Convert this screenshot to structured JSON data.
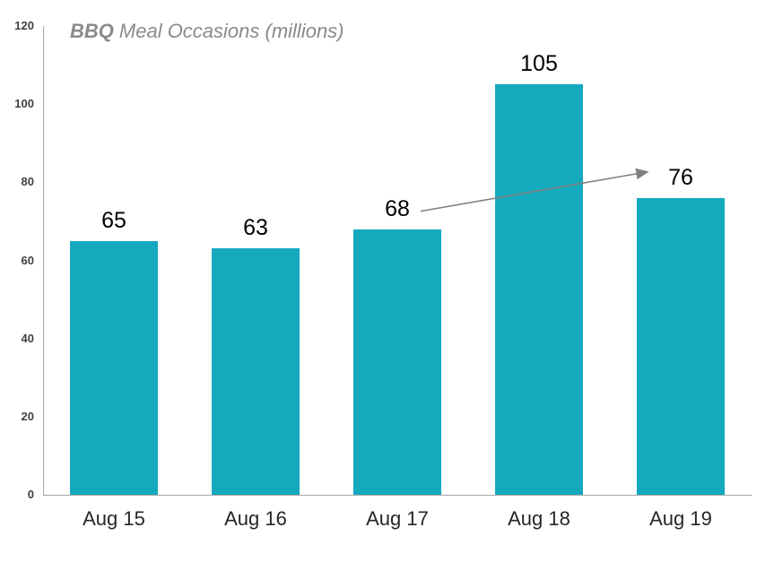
{
  "chart_data": {
    "type": "bar",
    "title_bold": "BBQ",
    "title_rest": "Meal Occasions (millions)",
    "categories": [
      "Aug 15",
      "Aug 16",
      "Aug 17",
      "Aug 18",
      "Aug 19"
    ],
    "values": [
      65,
      63,
      68,
      105,
      76
    ],
    "value_labels": [
      "65",
      "63",
      "68",
      "105",
      "76"
    ],
    "xlabel": "",
    "ylabel": "",
    "yticks": [
      0,
      20,
      40,
      60,
      80,
      100,
      120
    ],
    "ylim": [
      0,
      120
    ],
    "grid": false,
    "legend": false,
    "bar_color": "#15a9be",
    "axis_color": "#a6a6a6",
    "ytick_color": "#404040",
    "xtick_color": "#262626",
    "value_label_color": "#000000",
    "title_color": "#8a8a8a",
    "annotation": {
      "type": "arrow",
      "from_category": "Aug 17",
      "to_category": "Aug 19",
      "color": "#808080"
    }
  }
}
